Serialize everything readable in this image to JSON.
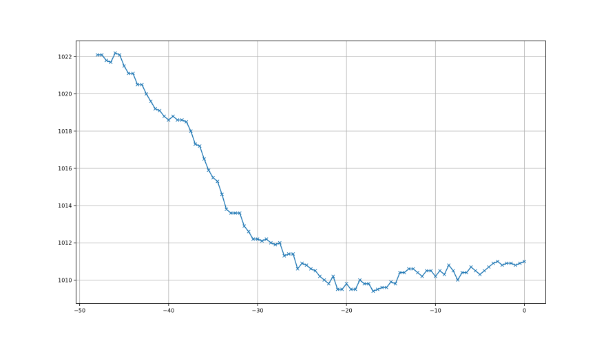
{
  "chart_data": {
    "type": "line",
    "title": "",
    "xlabel": "",
    "ylabel": "",
    "xlim": [
      -50.4,
      2.4
    ],
    "ylim": [
      1008.74,
      1022.85
    ],
    "xticks": [
      -50,
      -40,
      -30,
      -20,
      -10,
      0
    ],
    "yticks": [
      1010,
      1012,
      1014,
      1016,
      1018,
      1020,
      1022
    ],
    "xtick_labels": [
      "−50",
      "−40",
      "−30",
      "−20",
      "−10",
      "0"
    ],
    "ytick_labels": [
      "1010",
      "1012",
      "1014",
      "1016",
      "1018",
      "1020",
      "1022"
    ],
    "grid": true,
    "marker": "x",
    "color": "#1f77b4",
    "x_start": -48,
    "x_step": 0.5,
    "series": [
      {
        "values": [
          1022.1,
          1022.1,
          1021.8,
          1021.7,
          1022.2,
          1022.1,
          1021.5,
          1021.1,
          1021.1,
          1020.5,
          1020.5,
          1020.0,
          1019.6,
          1019.2,
          1019.1,
          1018.8,
          1018.6,
          1018.8,
          1018.6,
          1018.6,
          1018.5,
          1018.0,
          1017.3,
          1017.2,
          1016.5,
          1015.9,
          1015.5,
          1015.3,
          1014.6,
          1013.8,
          1013.6,
          1013.6,
          1013.6,
          1012.9,
          1012.6,
          1012.2,
          1012.2,
          1012.1,
          1012.2,
          1012.0,
          1011.9,
          1012.0,
          1011.3,
          1011.4,
          1011.4,
          1010.6,
          1010.9,
          1010.8,
          1010.6,
          1010.5,
          1010.2,
          1010.0,
          1009.8,
          1010.2,
          1009.5,
          1009.5,
          1009.8,
          1009.5,
          1009.5,
          1010.0,
          1009.8,
          1009.8,
          1009.4,
          1009.5,
          1009.6,
          1009.6,
          1009.9,
          1009.8,
          1010.4,
          1010.4,
          1010.6,
          1010.6,
          1010.4,
          1010.2,
          1010.5,
          1010.5,
          1010.2,
          1010.5,
          1010.3,
          1010.8,
          1010.5,
          1010.0,
          1010.4,
          1010.4,
          1010.7,
          1010.5,
          1010.3,
          1010.5,
          1010.7,
          1010.9,
          1011.0,
          1010.8,
          1010.9,
          1010.9,
          1010.8,
          1010.9,
          1011.0
        ]
      }
    ]
  }
}
